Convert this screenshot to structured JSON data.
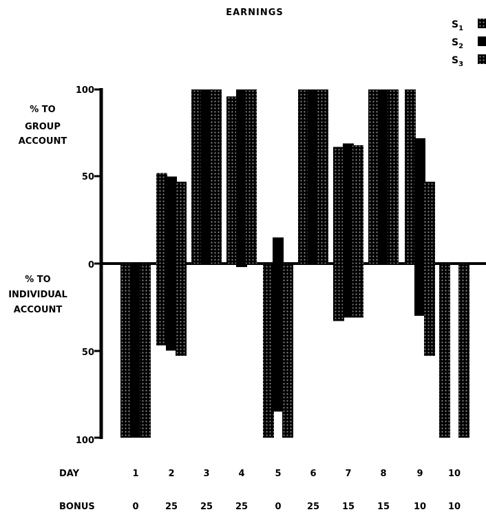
{
  "chart_data": {
    "type": "bar",
    "title": "EARNINGS",
    "group_axis_label": [
      "% TO",
      "GROUP",
      "ACCOUNT"
    ],
    "individual_axis_label": [
      "% TO",
      "INDIVIDUAL",
      "ACCOUNT"
    ],
    "y_tick_labels": [
      "100",
      "50",
      "0",
      "50",
      "100"
    ],
    "ylim": [
      -100,
      100
    ],
    "row_labels": {
      "day": "DAY",
      "bonus": "BONUS"
    },
    "days": [
      "1",
      "2",
      "3",
      "4",
      "5",
      "6",
      "7",
      "8",
      "9",
      "10"
    ],
    "bonus": [
      "0",
      "25",
      "25",
      "25",
      "0",
      "25",
      "15",
      "15",
      "10",
      "10"
    ],
    "series": [
      {
        "name": "S1",
        "pattern": "dotted",
        "group": [
          0,
          52,
          100,
          96,
          0,
          100,
          67,
          100,
          100,
          0
        ],
        "individual": [
          100,
          47,
          0,
          0,
          100,
          0,
          33,
          0,
          0,
          100
        ]
      },
      {
        "name": "S2",
        "pattern": "solid",
        "group": [
          0,
          50,
          100,
          100,
          15,
          100,
          69,
          100,
          72,
          0
        ],
        "individual": [
          100,
          50,
          0,
          2,
          85,
          0,
          31,
          0,
          30,
          0
        ]
      },
      {
        "name": "S3",
        "pattern": "dotted",
        "group": [
          0,
          47,
          100,
          100,
          0,
          100,
          68,
          100,
          47,
          0
        ],
        "individual": [
          100,
          53,
          0,
          0,
          100,
          0,
          31,
          0,
          53,
          100
        ]
      }
    ],
    "legend": {
      "position": "top-right",
      "labels": [
        "S1",
        "S2",
        "S3"
      ]
    },
    "colors": {
      "bar": "#000000",
      "background": "#ffffff"
    },
    "grid": false
  }
}
